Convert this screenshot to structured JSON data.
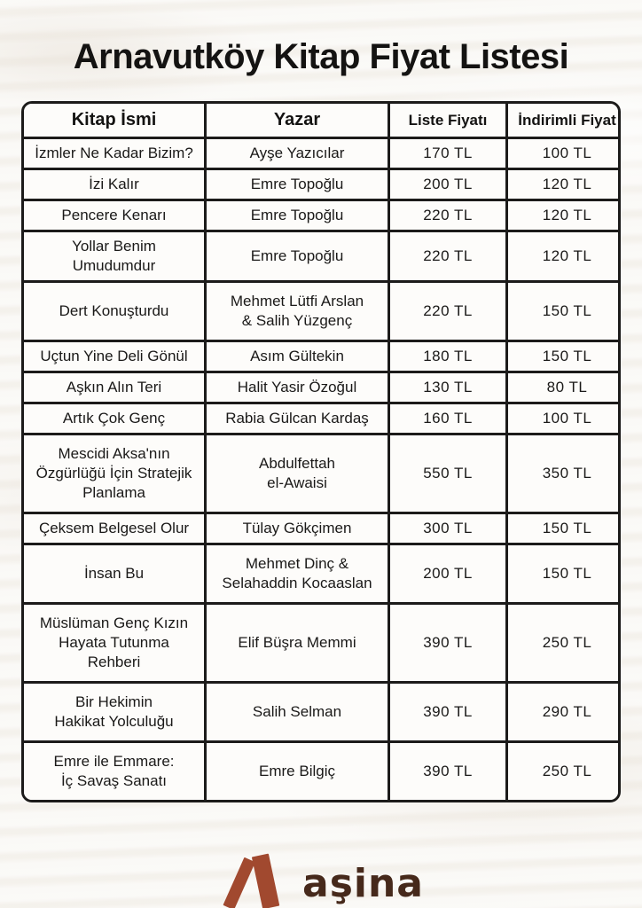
{
  "page": {
    "title": "Arnavutköy Kitap Fiyat Listesi"
  },
  "table": {
    "headers": [
      "Kitap İsmi",
      "Yazar",
      "Liste Fiyatı",
      "İndirimli Fiyat"
    ],
    "rows": [
      {
        "book": "İzmler Ne Kadar Bizim?",
        "author": "Ayşe Yazıcılar",
        "list_price": "170 TL",
        "discount_price": "100 TL"
      },
      {
        "book": "İzi Kalır",
        "author": "Emre Topoğlu",
        "list_price": "200 TL",
        "discount_price": "120 TL"
      },
      {
        "book": "Pencere Kenarı",
        "author": "Emre Topoğlu",
        "list_price": "220 TL",
        "discount_price": "120 TL"
      },
      {
        "book": "Yollar Benim Umudumdur",
        "author": "Emre Topoğlu",
        "list_price": "220 TL",
        "discount_price": "120 TL"
      },
      {
        "book": "Dert Konuşturdu",
        "author": "Mehmet Lütfi Arslan\n& Salih Yüzgenç",
        "list_price": "220 TL",
        "discount_price": "150 TL"
      },
      {
        "book": "Uçtun Yine Deli Gönül",
        "author": "Asım Gültekin",
        "list_price": "180 TL",
        "discount_price": "150 TL"
      },
      {
        "book": "Aşkın Alın Teri",
        "author": "Halit Yasir Özoğul",
        "list_price": "130 TL",
        "discount_price": "80 TL"
      },
      {
        "book": "Artık Çok Genç",
        "author": "Rabia Gülcan Kardaş",
        "list_price": "160 TL",
        "discount_price": "100 TL"
      },
      {
        "book": "Mescidi Aksa'nın\nÖzgürlüğü İçin Stratejik\nPlanlama",
        "author": "Abdulfettah\nel-Awaisi",
        "list_price": "550 TL",
        "discount_price": "350 TL"
      },
      {
        "book": "Çeksem Belgesel Olur",
        "author": "Tülay Gökçimen",
        "list_price": "300 TL",
        "discount_price": "150 TL"
      },
      {
        "book": "İnsan Bu",
        "author": "Mehmet Dinç &\nSelahaddin Kocaaslan",
        "list_price": "200 TL",
        "discount_price": "150 TL"
      },
      {
        "book": "Müslüman Genç Kızın\nHayata Tutunma Rehberi",
        "author": "Elif Büşra Memmi",
        "list_price": "390 TL",
        "discount_price": "250 TL"
      },
      {
        "book": "Bir Hekimin\nHakikat Yolculuğu",
        "author": "Salih Selman",
        "list_price": "390 TL",
        "discount_price": "290 TL"
      },
      {
        "book": "Emre ile Emmare:\nİç Savaş Sanatı",
        "author": "Emre Bilgiç",
        "list_price": "390 TL",
        "discount_price": "250 TL"
      }
    ]
  },
  "footer": {
    "brand_name": "aşina",
    "brand_icon": "open-book-icon",
    "brand_icon_color": "#a1492f",
    "brand_text_color": "#46291b"
  }
}
